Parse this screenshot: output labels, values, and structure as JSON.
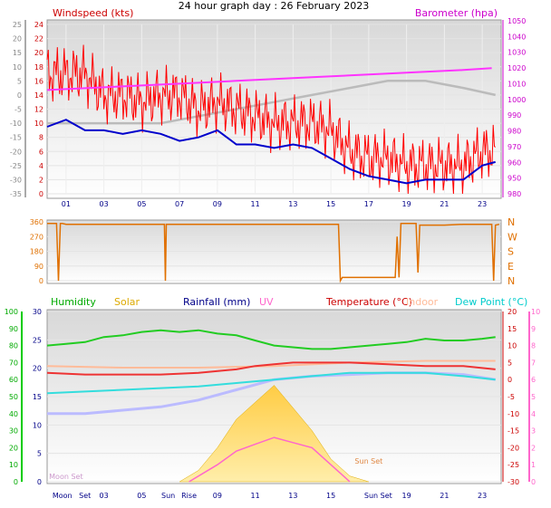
{
  "chart_data": [
    {
      "type": "line",
      "title": "24 hour graph day : 26 February 2023",
      "left_axis_label": "Windspeed (kts)",
      "right_axis_label": "Barometer (hpa)",
      "outer_left_ticks": [
        "25",
        "20",
        "15",
        "10",
        "5",
        "0",
        "-5",
        "-10",
        "-15",
        "-20",
        "-25",
        "-30",
        "-35"
      ],
      "windspeed_ticks": [
        "24",
        "22",
        "20",
        "18",
        "16",
        "14",
        "12",
        "10",
        "8",
        "6",
        "4",
        "2",
        "0"
      ],
      "windspeed_ylim": [
        0,
        25
      ],
      "barometer_ticks": [
        "1050",
        "1040",
        "1030",
        "1020",
        "1010",
        "1000",
        "990",
        "980",
        "970",
        "960",
        "950",
        "980"
      ],
      "barometer_ylim": [
        955,
        1050
      ],
      "x_ticks": [
        "01",
        "03",
        "05",
        "07",
        "09",
        "11",
        "13",
        "15",
        "17",
        "19",
        "21",
        "23"
      ],
      "x_hours": [
        1,
        3,
        5,
        7,
        9,
        11,
        13,
        15,
        17,
        19,
        21,
        23
      ],
      "series": [
        {
          "name": "Barometer (hpa)",
          "color": "#ff33ff",
          "x": [
            0,
            2,
            4,
            6,
            8,
            10,
            12,
            14,
            16,
            18,
            20,
            22,
            23.5
          ],
          "values": [
            1012,
            1013,
            1014,
            1015,
            1016,
            1017,
            1018,
            1019,
            1020,
            1021,
            1022,
            1023,
            1024
          ]
        },
        {
          "name": "gust",
          "color": "#ff0000",
          "x": [
            0,
            1,
            2,
            3,
            4,
            5,
            6,
            7,
            8,
            9,
            10,
            11,
            12,
            13,
            14,
            15,
            16,
            17,
            18,
            19,
            20,
            21,
            22,
            23,
            23.7
          ],
          "values": [
            17,
            17,
            17,
            14,
            14,
            13,
            14,
            14,
            12,
            13,
            12,
            11,
            10,
            10,
            10,
            9,
            6,
            5,
            5,
            4,
            4,
            4,
            4,
            6,
            6
          ]
        },
        {
          "name": "average",
          "color": "#0000cc",
          "x": [
            0,
            1,
            2,
            3,
            4,
            5,
            6,
            7,
            8,
            9,
            10,
            11,
            12,
            13,
            14,
            15,
            16,
            17,
            18,
            19,
            20,
            21,
            22,
            23,
            23.7
          ],
          "values": [
            9.5,
            10.5,
            9,
            9,
            8.5,
            9,
            8.5,
            7.5,
            8,
            9,
            7,
            7,
            6.5,
            7,
            6.5,
            5,
            3.5,
            2.5,
            2,
            1.5,
            2,
            2,
            2,
            4,
            4.5
          ]
        },
        {
          "name": "temperature (grey)",
          "color": "#bbbbbb",
          "x": [
            0,
            2,
            4,
            6,
            8,
            10,
            12,
            14,
            16,
            18,
            20,
            22,
            23.7
          ],
          "values": [
            10,
            10,
            10,
            10,
            11,
            12,
            13,
            14,
            15,
            16,
            16,
            15,
            14
          ]
        }
      ]
    },
    {
      "type": "line",
      "subtitle": "wind direction",
      "left_ticks": [
        "360",
        "270",
        "180",
        "90",
        "0"
      ],
      "direction_labels": [
        "N",
        "W",
        "S",
        "E",
        "N"
      ],
      "ylim": [
        0,
        360
      ],
      "series": [
        {
          "name": "direction",
          "color": "#e07000",
          "x": [
            0,
            0.5,
            0.6,
            0.7,
            0.8,
            1,
            5,
            6.2,
            6.25,
            6.3,
            10,
            15.4,
            15.5,
            15.6,
            15.7,
            18.4,
            18.5,
            18.6,
            18.7,
            19.5,
            19.6,
            19.7,
            21,
            22,
            23.5,
            23.6,
            23.7,
            23.9
          ],
          "values": [
            350,
            350,
            0,
            350,
            350,
            345,
            345,
            345,
            0,
            345,
            345,
            345,
            0,
            20,
            20,
            20,
            270,
            20,
            350,
            350,
            50,
            340,
            340,
            345,
            345,
            0,
            340,
            345
          ]
        }
      ]
    },
    {
      "type": "line",
      "legend": [
        "Humidity",
        "Solar",
        "Rainfall (mm)",
        "UV",
        "Temperature (°C)",
        "Indoor",
        "Dew Point (°C)"
      ],
      "legend_colors": [
        "#00aa00",
        "#ddaa00",
        "#000088",
        "#ff66cc",
        "#cc0000",
        "#ffbb99",
        "#00cccc"
      ],
      "outer_left_ticks": [
        "100",
        "90",
        "80",
        "70",
        "60",
        "50",
        "40",
        "30",
        "20",
        "10",
        "0"
      ],
      "humidity_ticks": [
        "30",
        "25",
        "20",
        "15",
        "10",
        "5",
        "0"
      ],
      "right_temp_ticks": [
        "20",
        "15",
        "10",
        "5",
        "0",
        "-5",
        "-10",
        "-15",
        "-20",
        "-25",
        "-30"
      ],
      "right_uv_ticks": [
        "10",
        "9",
        "8",
        "7",
        "6",
        "5",
        "4",
        "3",
        "2",
        "1",
        "0"
      ],
      "x_ticks": [
        "Moon",
        "Set",
        "03",
        "05",
        "Sun",
        "Rise",
        "09",
        "11",
        "13",
        "15",
        "Sun Set",
        "19",
        "21",
        "23"
      ],
      "annotations": [
        "Moon Set",
        "Sun Set"
      ],
      "series": [
        {
          "name": "Humidity",
          "color": "#22cc22",
          "x": [
            0,
            1,
            2,
            3,
            4,
            5,
            6,
            7,
            8,
            9,
            10,
            11,
            12,
            13,
            14,
            15,
            16,
            17,
            18,
            19,
            20,
            21,
            22,
            23,
            23.7
          ],
          "values": [
            80,
            81,
            82,
            85,
            86,
            88,
            89,
            88,
            89,
            87,
            86,
            83,
            80,
            79,
            78,
            78,
            79,
            80,
            81,
            82,
            84,
            83,
            83,
            84,
            85
          ]
        },
        {
          "name": "Indoor",
          "color": "#ffbb99",
          "x": [
            0,
            4,
            8,
            12,
            16,
            20,
            23.7
          ],
          "values": [
            68,
            67,
            67,
            68,
            70,
            71,
            71
          ]
        },
        {
          "name": "Temperature (°C)",
          "color": "#ee3333",
          "x": [
            0,
            2,
            4,
            6,
            8,
            10,
            11,
            12,
            13,
            14,
            15,
            16,
            18,
            20,
            22,
            23.7
          ],
          "values": [
            2,
            1.5,
            1.5,
            1.5,
            2,
            3,
            4,
            4.5,
            5,
            5,
            5,
            5,
            4.5,
            4,
            4,
            3
          ]
        },
        {
          "name": "Dew Point (°C)",
          "color": "#33dddd",
          "x": [
            0,
            2,
            4,
            6,
            8,
            10,
            12,
            14,
            16,
            18,
            20,
            22,
            23.7
          ],
          "values": [
            -4,
            -3.5,
            -3,
            -2.5,
            -2,
            -1,
            0,
            1,
            2,
            2,
            2,
            1,
            0
          ]
        },
        {
          "name": "feels-like (lavender)",
          "color": "#bbbbff",
          "x": [
            0,
            2,
            4,
            6,
            8,
            10,
            12,
            14,
            16,
            18,
            20,
            22,
            23.7
          ],
          "values": [
            -10,
            -10,
            -9,
            -8,
            -6,
            -3,
            0,
            1,
            1.5,
            2,
            2,
            1.5,
            0
          ]
        },
        {
          "name": "Solar",
          "color": "#ffcc44",
          "x": [
            7,
            8,
            9,
            10,
            11,
            12,
            13,
            14,
            15,
            16,
            17
          ],
          "values": [
            0,
            2,
            6,
            11,
            14,
            17,
            13,
            9,
            4,
            1,
            0
          ]
        },
        {
          "name": "UV",
          "color": "#ff66cc",
          "x": [
            7.5,
            9,
            10,
            11,
            12,
            13,
            14,
            15,
            16
          ],
          "values": [
            0,
            1,
            1.8,
            2.2,
            2.6,
            2.3,
            2,
            1,
            0
          ]
        }
      ]
    }
  ]
}
